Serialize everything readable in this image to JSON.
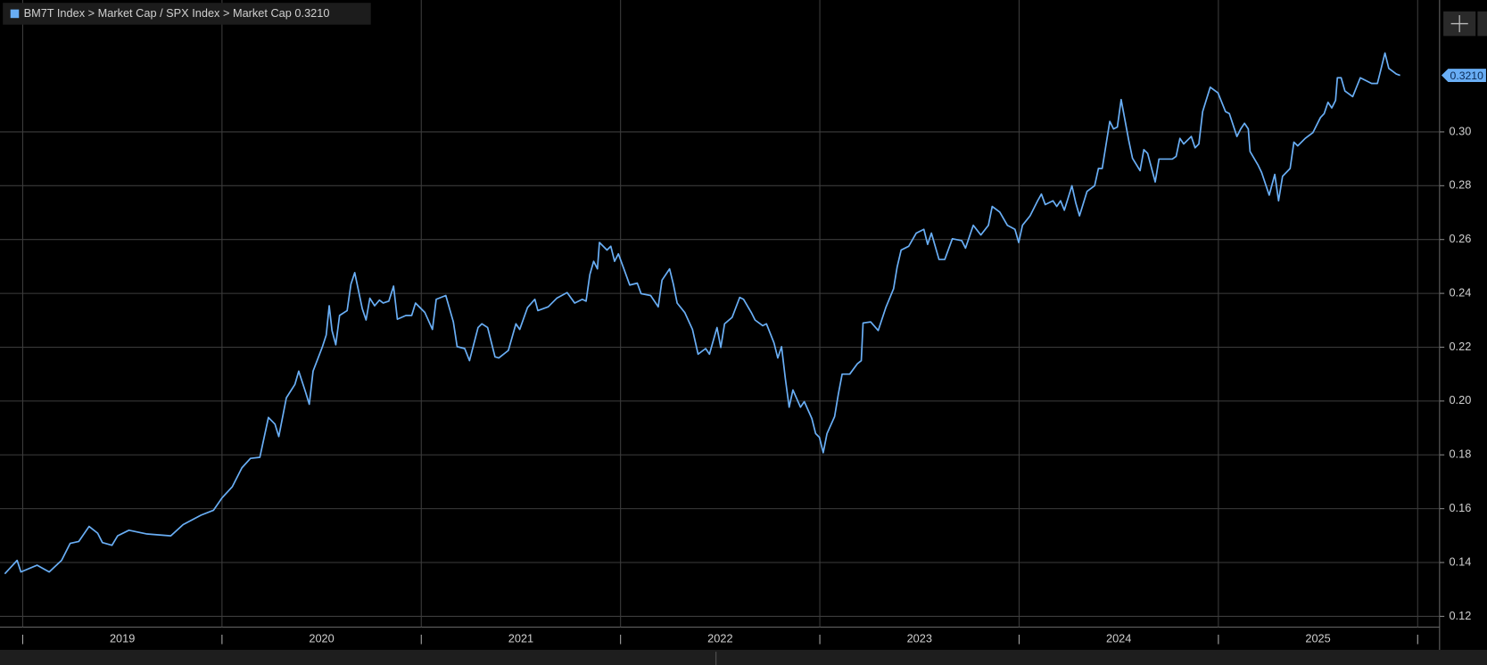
{
  "chart_data": {
    "type": "line",
    "series": [
      {
        "name": "BM7T Index > Market Cap / SPX Index > Market Cap",
        "color": "#69aef5",
        "values": [
          0.1358,
          0.1408,
          0.1365,
          0.139,
          0.1365,
          0.1408,
          0.1471,
          0.1478,
          0.1534,
          0.1509,
          0.1474,
          0.1464,
          0.1499,
          0.152,
          0.1506,
          0.1499,
          0.1541,
          0.1576,
          0.1594,
          0.164,
          0.1682,
          0.1752,
          0.1787,
          0.1791,
          0.1939,
          0.1914,
          0.1868,
          0.2012,
          0.2062,
          0.2111,
          0.2034,
          0.1988,
          0.2111,
          0.2202,
          0.2245,
          0.2354,
          0.2262,
          0.2209,
          0.2318,
          0.2336,
          0.2434,
          0.2477,
          0.2343,
          0.2301,
          0.2382,
          0.2354,
          0.2375,
          0.2364,
          0.2371,
          0.2427,
          0.2304,
          0.2318,
          0.2318,
          0.2364,
          0.2329,
          0.2266,
          0.2378,
          0.2392,
          0.2294,
          0.2202,
          0.2195,
          0.215,
          0.2273,
          0.2287,
          0.2273,
          0.2164,
          0.216,
          0.2188,
          0.2287,
          0.2266,
          0.2347,
          0.2378,
          0.2336,
          0.235,
          0.2382,
          0.2403,
          0.2364,
          0.2378,
          0.2371,
          0.247,
          0.2519,
          0.2491,
          0.2589,
          0.2561,
          0.2575,
          0.2519,
          0.2547,
          0.247,
          0.2431,
          0.2438,
          0.2399,
          0.2392,
          0.235,
          0.2449,
          0.2491,
          0.2434,
          0.2364,
          0.2329,
          0.2266,
          0.2174,
          0.2195,
          0.2174,
          0.2273,
          0.2199,
          0.2287,
          0.2311,
          0.2385,
          0.2378,
          0.2329,
          0.2301,
          0.228,
          0.2287,
          0.2216,
          0.216,
          0.2202,
          0.2083,
          0.1977,
          0.2041,
          0.1977,
          0.1998,
          0.1935,
          0.1879,
          0.1865,
          0.1808,
          0.1879,
          0.1942,
          0.2026,
          0.21,
          0.21,
          0.2139,
          0.215,
          0.229,
          0.2294,
          0.2262,
          0.2347,
          0.2417,
          0.2498,
          0.2561,
          0.2575,
          0.2624,
          0.2638,
          0.2582,
          0.2624,
          0.2526,
          0.2526,
          0.2603,
          0.2596,
          0.2568,
          0.2653,
          0.2617,
          0.2653,
          0.2723,
          0.2702,
          0.2653,
          0.2638,
          0.2589,
          0.2653,
          0.2688,
          0.2744,
          0.2769,
          0.273,
          0.2744,
          0.2723,
          0.2744,
          0.2709,
          0.28,
          0.2737,
          0.2688,
          0.2779,
          0.28,
          0.2864,
          0.2864,
          0.3039,
          0.3011,
          0.3018,
          0.312,
          0.2969,
          0.2902,
          0.2856,
          0.2934,
          0.292,
          0.2814,
          0.2899,
          0.2899,
          0.2909,
          0.2976,
          0.2955,
          0.2983,
          0.2941,
          0.2955,
          0.3075,
          0.3166,
          0.3145,
          0.3075,
          0.3068,
          0.2983,
          0.3011,
          0.3032,
          0.3011,
          0.2927,
          0.2878,
          0.2849,
          0.2765,
          0.2842,
          0.2744,
          0.2835,
          0.2864,
          0.2962,
          0.2948,
          0.2976,
          0.2997,
          0.3053,
          0.3068,
          0.311,
          0.3089,
          0.3117,
          0.3201,
          0.3201,
          0.3152,
          0.3131,
          0.3201,
          0.318,
          0.318,
          0.3236,
          0.3293,
          0.3236,
          0.3215,
          0.321
        ]
      }
    ],
    "x": [
      2018.91,
      2018.972,
      2018.991,
      2019.072,
      2019.133,
      2019.195,
      2019.238,
      2019.281,
      2019.333,
      2019.376,
      2019.4,
      2019.448,
      2019.476,
      2019.533,
      2019.624,
      2019.743,
      2019.805,
      2019.895,
      2019.957,
      2020.0,
      2020.052,
      2020.1,
      2020.143,
      2020.19,
      2020.233,
      2020.266,
      2020.285,
      2020.323,
      2020.366,
      2020.385,
      2020.419,
      2020.438,
      2020.457,
      2020.504,
      2020.523,
      2020.538,
      2020.552,
      2020.571,
      2020.59,
      2020.628,
      2020.647,
      2020.666,
      2020.704,
      2020.723,
      2020.742,
      2020.766,
      2020.79,
      2020.809,
      2020.837,
      2020.861,
      2020.88,
      2020.923,
      2020.952,
      2020.971,
      2021.018,
      2021.056,
      2021.075,
      2021.123,
      2021.161,
      2021.18,
      2021.218,
      2021.242,
      2021.285,
      2021.304,
      2021.333,
      2021.37,
      2021.389,
      2021.437,
      2021.475,
      2021.494,
      2021.533,
      2021.57,
      2021.585,
      2021.637,
      2021.68,
      2021.732,
      2021.77,
      2021.808,
      2021.827,
      2021.846,
      2021.865,
      2021.884,
      2021.894,
      2021.932,
      2021.951,
      2021.97,
      2021.989,
      2022.027,
      2022.046,
      2022.084,
      2022.103,
      2022.151,
      2022.189,
      2022.208,
      2022.246,
      2022.265,
      2022.284,
      2022.322,
      2022.361,
      2022.389,
      2022.427,
      2022.446,
      2022.484,
      2022.503,
      2022.522,
      2022.56,
      2022.598,
      2022.617,
      2022.656,
      2022.675,
      2022.713,
      2022.732,
      2022.77,
      2022.789,
      2022.808,
      2022.827,
      2022.846,
      2022.865,
      2022.903,
      2022.922,
      2022.96,
      2022.979,
      2022.998,
      2023.017,
      2023.036,
      2023.074,
      2023.093,
      2023.112,
      2023.15,
      2023.189,
      2023.208,
      2023.217,
      2023.255,
      2023.293,
      2023.331,
      2023.37,
      2023.388,
      2023.408,
      2023.446,
      2023.484,
      2023.522,
      2023.541,
      2023.56,
      2023.598,
      2023.627,
      2023.665,
      2023.712,
      2023.731,
      2023.77,
      2023.808,
      2023.846,
      2023.865,
      2023.903,
      2023.941,
      2023.979,
      2023.998,
      2024.017,
      2024.055,
      2024.093,
      2024.112,
      2024.131,
      2024.17,
      2024.189,
      2024.208,
      2024.227,
      2024.265,
      2024.284,
      2024.303,
      2024.341,
      2024.379,
      2024.398,
      2024.417,
      2024.455,
      2024.474,
      2024.493,
      2024.512,
      2024.55,
      2024.569,
      2024.607,
      2024.626,
      2024.645,
      2024.683,
      2024.702,
      2024.769,
      2024.788,
      2024.807,
      2024.826,
      2024.864,
      2024.883,
      2024.902,
      2024.921,
      2024.959,
      2024.998,
      2025.036,
      2025.055,
      2025.093,
      2025.112,
      2025.131,
      2025.15,
      2025.159,
      2025.198,
      2025.217,
      2025.255,
      2025.283,
      2025.302,
      2025.322,
      2025.36,
      2025.379,
      2025.398,
      2025.436,
      2025.474,
      2025.512,
      2025.531,
      2025.55,
      2025.569,
      2025.588,
      2025.597,
      2025.616,
      2025.635,
      2025.674,
      2025.712,
      2025.769,
      2025.798,
      2025.817,
      2025.836,
      2025.855,
      2025.893,
      2025.912
    ],
    "last_value_label": "0.3210",
    "xlim": [
      2018.886,
      2026.11
    ],
    "xticks": [
      {
        "value": 2019.5,
        "label": "2019"
      },
      {
        "value": 2020.5,
        "label": "2020"
      },
      {
        "value": 2021.5,
        "label": "2021"
      },
      {
        "value": 2022.5,
        "label": "2022"
      },
      {
        "value": 2023.5,
        "label": "2023"
      },
      {
        "value": 2024.5,
        "label": "2024"
      },
      {
        "value": 2025.5,
        "label": "2025"
      }
    ],
    "xgrid": [
      2019,
      2020,
      2021,
      2022,
      2023,
      2024,
      2025,
      2026
    ],
    "ylim": [
      0.116,
      0.349
    ],
    "yticks": [
      0.12,
      0.14,
      0.16,
      0.18,
      {
        "value": 0.2,
        "label": "0.20"
      },
      0.22,
      0.24,
      0.26,
      0.28,
      {
        "value": 0.3,
        "label": "0.30"
      }
    ],
    "grid": true
  }
}
